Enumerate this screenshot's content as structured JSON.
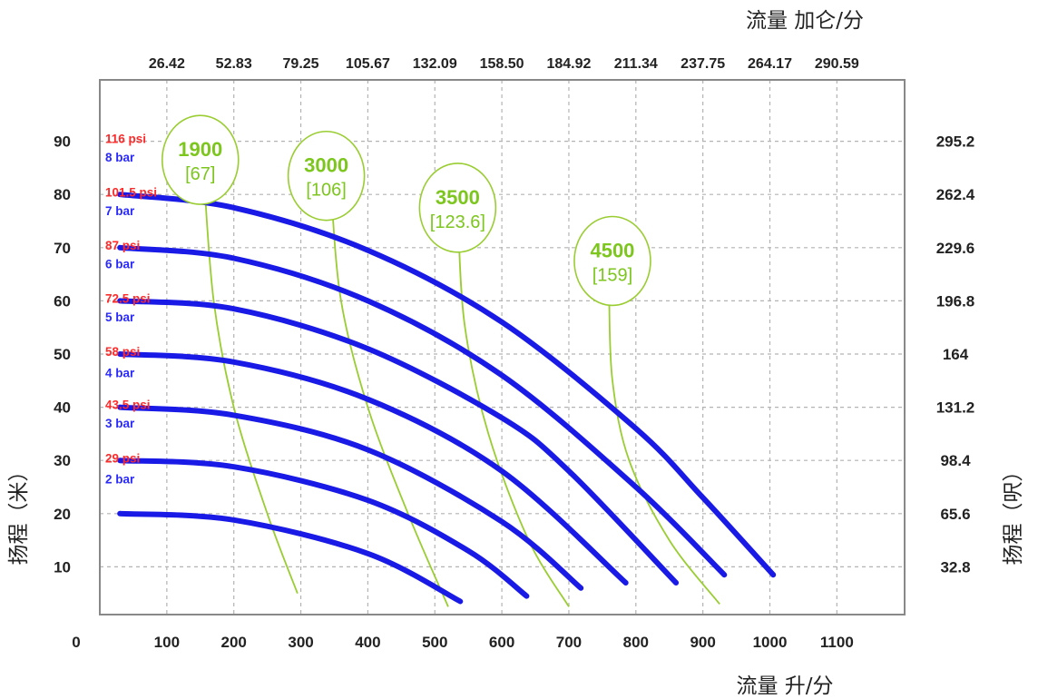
{
  "chart_data": {
    "type": "line",
    "xlabel_bottom": "流量 升/分",
    "xlabel_top": "流量 加仑/分",
    "ylabel_left": "扬程（米）",
    "ylabel_right": "扬程（呎）",
    "x_origin_label": "0",
    "xlim": [
      0,
      1200
    ],
    "ylim": [
      0,
      95
    ],
    "grid": true,
    "x_ticks_bottom": [
      100,
      200,
      300,
      400,
      500,
      600,
      700,
      800,
      900,
      1000,
      1100
    ],
    "x_ticks_top": [
      "26.42",
      "52.83",
      "79.25",
      "105.67",
      "132.09",
      "158.50",
      "184.92",
      "211.34",
      "237.75",
      "264.17",
      "290.59"
    ],
    "y_ticks_left": [
      10,
      20,
      30,
      40,
      50,
      60,
      70,
      80,
      90
    ],
    "y_ticks_right": [
      {
        "y": 10,
        "label": "32.8"
      },
      {
        "y": 20,
        "label": "65.6"
      },
      {
        "y": 30,
        "label": "98.4"
      },
      {
        "y": 40,
        "label": "131.2"
      },
      {
        "y": 50,
        "label": "164"
      },
      {
        "y": 60,
        "label": "196.8"
      },
      {
        "y": 70,
        "label": "229.6"
      },
      {
        "y": 80,
        "label": "262.4"
      },
      {
        "y": 90,
        "label": "295.2"
      }
    ],
    "pressure_labels": [
      {
        "y": 90.5,
        "text": "116 psi",
        "color": "#ff2a2a"
      },
      {
        "y": 87,
        "text": "8 bar",
        "color": "#2a2aff"
      },
      {
        "y": 80.5,
        "text": "101.5 psi",
        "color": "#ff2a2a"
      },
      {
        "y": 77,
        "text": "7 bar",
        "color": "#2a2aff"
      },
      {
        "y": 70.5,
        "text": "87 psi",
        "color": "#ff2a2a"
      },
      {
        "y": 67,
        "text": "6 bar",
        "color": "#2a2aff"
      },
      {
        "y": 60.5,
        "text": "72.5 psi",
        "color": "#ff2a2a"
      },
      {
        "y": 57,
        "text": "5 bar",
        "color": "#2a2aff"
      },
      {
        "y": 50.5,
        "text": "58 psi",
        "color": "#ff2a2a"
      },
      {
        "y": 46.5,
        "text": "4 bar",
        "color": "#2a2aff"
      },
      {
        "y": 40.5,
        "text": "43.5 psi",
        "color": "#ff2a2a"
      },
      {
        "y": 37,
        "text": "3 bar",
        "color": "#2a2aff"
      },
      {
        "y": 30.5,
        "text": "29 psi",
        "color": "#ff2a2a"
      },
      {
        "y": 26.5,
        "text": "2 bar",
        "color": "#2a2aff"
      }
    ],
    "series": [
      {
        "name": "8 bar",
        "color": "#1a1ae6",
        "x": [
          30,
          200,
          400,
          600,
          800,
          900,
          1005
        ],
        "y": [
          80,
          77.5,
          69.5,
          56,
          36,
          23,
          8.5
        ]
      },
      {
        "name": "7 bar",
        "color": "#1a1ae6",
        "x": [
          30,
          200,
          400,
          600,
          800,
          932
        ],
        "y": [
          70,
          68,
          60,
          46,
          25,
          8.5
        ]
      },
      {
        "name": "6 bar",
        "color": "#1a1ae6",
        "x": [
          30,
          200,
          400,
          600,
          700,
          860
        ],
        "y": [
          60,
          58.5,
          51,
          38,
          28,
          7
        ]
      },
      {
        "name": "5 bar",
        "color": "#1a1ae6",
        "x": [
          30,
          200,
          400,
          600,
          785
        ],
        "y": [
          50,
          48.5,
          41.5,
          28,
          7
        ]
      },
      {
        "name": "4 bar",
        "color": "#1a1ae6",
        "x": [
          30,
          200,
          400,
          600,
          718
        ],
        "y": [
          40,
          38.5,
          32,
          18.5,
          6
        ]
      },
      {
        "name": "3 bar",
        "color": "#1a1ae6",
        "x": [
          30,
          200,
          400,
          550,
          637
        ],
        "y": [
          30,
          28.8,
          22.5,
          13,
          4.5
        ]
      },
      {
        "name": "2 bar",
        "color": "#1a1ae6",
        "x": [
          30,
          200,
          400,
          538
        ],
        "y": [
          20,
          18.8,
          12.5,
          3.5
        ]
      }
    ],
    "speed_curves": [
      {
        "color": "#9acd32",
        "x": [
          155,
          170,
          200,
          250,
          295
        ],
        "y": [
          84,
          60,
          40,
          20,
          5
        ]
      },
      {
        "color": "#9acd32",
        "x": [
          345,
          360,
          400,
          460,
          520
        ],
        "y": [
          81,
          60,
          40,
          20,
          2.5
        ]
      },
      {
        "color": "#9acd32",
        "x": [
          535,
          545,
          580,
          640,
          700
        ],
        "y": [
          74,
          55,
          35,
          15,
          2.5
        ]
      },
      {
        "color": "#9acd32",
        "x": [
          760,
          765,
          790,
          850,
          925
        ],
        "y": [
          61,
          45,
          30,
          15,
          3
        ]
      }
    ],
    "speed_labels": [
      {
        "cx": 150,
        "cy": 86.5,
        "rx": 42,
        "ry": 12.5,
        "main": "1900",
        "sub": "[67]"
      },
      {
        "cx": 338,
        "cy": 83.5,
        "rx": 42,
        "ry": 12.5,
        "main": "3000",
        "sub": "[106]"
      },
      {
        "cx": 534,
        "cy": 77.5,
        "rx": 42,
        "ry": 12.5,
        "main": "3500",
        "sub": "[123.6]"
      },
      {
        "cx": 765,
        "cy": 67.5,
        "rx": 42,
        "ry": 12.5,
        "main": "4500",
        "sub": "[159]"
      }
    ],
    "colors": {
      "curve": "#1a1ae6",
      "speed": "#9acd32",
      "speed_text": "#7cc61e",
      "grid": "#b3b3b3",
      "frame": "#888888"
    }
  }
}
